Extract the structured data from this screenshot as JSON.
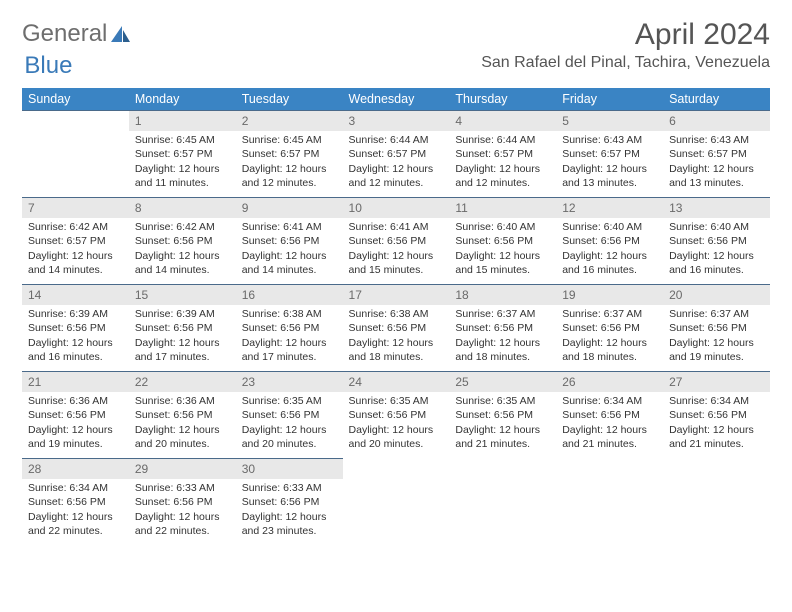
{
  "logo": {
    "part1": "General",
    "part2": "Blue"
  },
  "title": "April 2024",
  "location": "San Rafael del Pinal, Tachira, Venezuela",
  "colors": {
    "header_bg": "#3a84c4",
    "header_text": "#ffffff",
    "daynum_bg": "#e8e8e8",
    "daynum_text": "#6a6a6a",
    "row_border": "#4a6a8a",
    "title_text": "#555555",
    "logo_gray": "#6e6e6e",
    "logo_blue": "#3a7ab8",
    "body_text": "#333333"
  },
  "day_labels": [
    "Sunday",
    "Monday",
    "Tuesday",
    "Wednesday",
    "Thursday",
    "Friday",
    "Saturday"
  ],
  "weeks": [
    [
      {
        "num": "",
        "text": ""
      },
      {
        "num": "1",
        "text": "Sunrise: 6:45 AM\nSunset: 6:57 PM\nDaylight: 12 hours and 11 minutes."
      },
      {
        "num": "2",
        "text": "Sunrise: 6:45 AM\nSunset: 6:57 PM\nDaylight: 12 hours and 12 minutes."
      },
      {
        "num": "3",
        "text": "Sunrise: 6:44 AM\nSunset: 6:57 PM\nDaylight: 12 hours and 12 minutes."
      },
      {
        "num": "4",
        "text": "Sunrise: 6:44 AM\nSunset: 6:57 PM\nDaylight: 12 hours and 12 minutes."
      },
      {
        "num": "5",
        "text": "Sunrise: 6:43 AM\nSunset: 6:57 PM\nDaylight: 12 hours and 13 minutes."
      },
      {
        "num": "6",
        "text": "Sunrise: 6:43 AM\nSunset: 6:57 PM\nDaylight: 12 hours and 13 minutes."
      }
    ],
    [
      {
        "num": "7",
        "text": "Sunrise: 6:42 AM\nSunset: 6:57 PM\nDaylight: 12 hours and 14 minutes."
      },
      {
        "num": "8",
        "text": "Sunrise: 6:42 AM\nSunset: 6:56 PM\nDaylight: 12 hours and 14 minutes."
      },
      {
        "num": "9",
        "text": "Sunrise: 6:41 AM\nSunset: 6:56 PM\nDaylight: 12 hours and 14 minutes."
      },
      {
        "num": "10",
        "text": "Sunrise: 6:41 AM\nSunset: 6:56 PM\nDaylight: 12 hours and 15 minutes."
      },
      {
        "num": "11",
        "text": "Sunrise: 6:40 AM\nSunset: 6:56 PM\nDaylight: 12 hours and 15 minutes."
      },
      {
        "num": "12",
        "text": "Sunrise: 6:40 AM\nSunset: 6:56 PM\nDaylight: 12 hours and 16 minutes."
      },
      {
        "num": "13",
        "text": "Sunrise: 6:40 AM\nSunset: 6:56 PM\nDaylight: 12 hours and 16 minutes."
      }
    ],
    [
      {
        "num": "14",
        "text": "Sunrise: 6:39 AM\nSunset: 6:56 PM\nDaylight: 12 hours and 16 minutes."
      },
      {
        "num": "15",
        "text": "Sunrise: 6:39 AM\nSunset: 6:56 PM\nDaylight: 12 hours and 17 minutes."
      },
      {
        "num": "16",
        "text": "Sunrise: 6:38 AM\nSunset: 6:56 PM\nDaylight: 12 hours and 17 minutes."
      },
      {
        "num": "17",
        "text": "Sunrise: 6:38 AM\nSunset: 6:56 PM\nDaylight: 12 hours and 18 minutes."
      },
      {
        "num": "18",
        "text": "Sunrise: 6:37 AM\nSunset: 6:56 PM\nDaylight: 12 hours and 18 minutes."
      },
      {
        "num": "19",
        "text": "Sunrise: 6:37 AM\nSunset: 6:56 PM\nDaylight: 12 hours and 18 minutes."
      },
      {
        "num": "20",
        "text": "Sunrise: 6:37 AM\nSunset: 6:56 PM\nDaylight: 12 hours and 19 minutes."
      }
    ],
    [
      {
        "num": "21",
        "text": "Sunrise: 6:36 AM\nSunset: 6:56 PM\nDaylight: 12 hours and 19 minutes."
      },
      {
        "num": "22",
        "text": "Sunrise: 6:36 AM\nSunset: 6:56 PM\nDaylight: 12 hours and 20 minutes."
      },
      {
        "num": "23",
        "text": "Sunrise: 6:35 AM\nSunset: 6:56 PM\nDaylight: 12 hours and 20 minutes."
      },
      {
        "num": "24",
        "text": "Sunrise: 6:35 AM\nSunset: 6:56 PM\nDaylight: 12 hours and 20 minutes."
      },
      {
        "num": "25",
        "text": "Sunrise: 6:35 AM\nSunset: 6:56 PM\nDaylight: 12 hours and 21 minutes."
      },
      {
        "num": "26",
        "text": "Sunrise: 6:34 AM\nSunset: 6:56 PM\nDaylight: 12 hours and 21 minutes."
      },
      {
        "num": "27",
        "text": "Sunrise: 6:34 AM\nSunset: 6:56 PM\nDaylight: 12 hours and 21 minutes."
      }
    ],
    [
      {
        "num": "28",
        "text": "Sunrise: 6:34 AM\nSunset: 6:56 PM\nDaylight: 12 hours and 22 minutes."
      },
      {
        "num": "29",
        "text": "Sunrise: 6:33 AM\nSunset: 6:56 PM\nDaylight: 12 hours and 22 minutes."
      },
      {
        "num": "30",
        "text": "Sunrise: 6:33 AM\nSunset: 6:56 PM\nDaylight: 12 hours and 23 minutes."
      },
      {
        "num": "",
        "text": ""
      },
      {
        "num": "",
        "text": ""
      },
      {
        "num": "",
        "text": ""
      },
      {
        "num": "",
        "text": ""
      }
    ]
  ]
}
